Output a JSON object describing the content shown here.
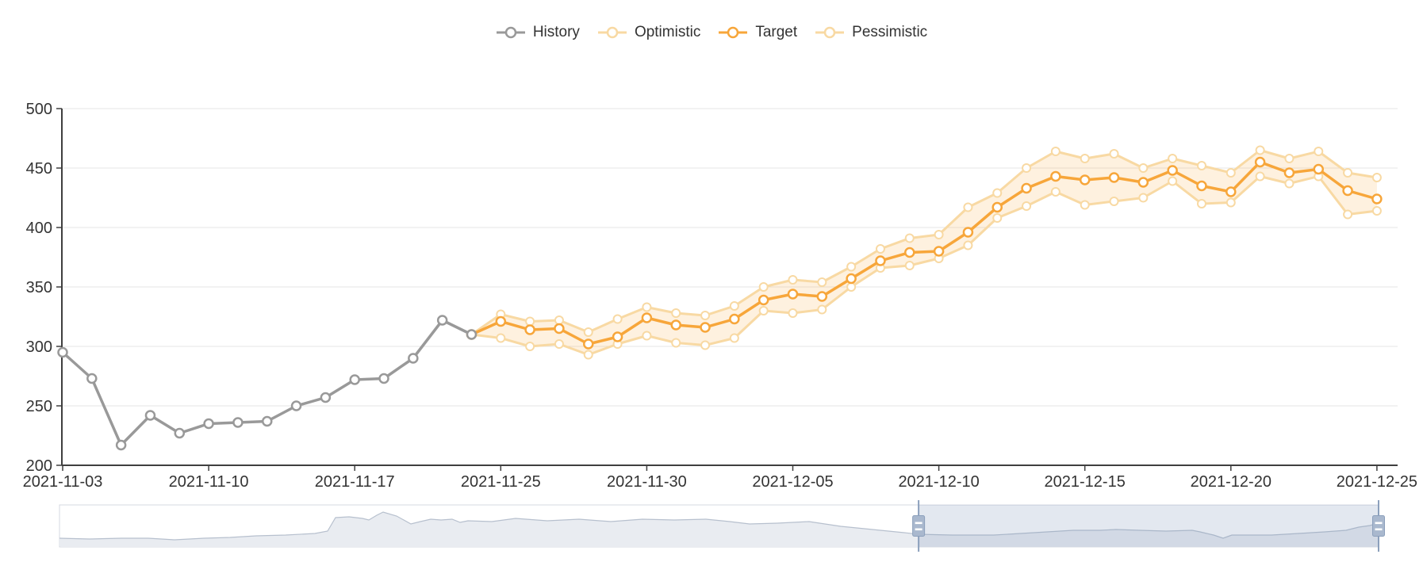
{
  "page": {
    "background": "#ffffff"
  },
  "legend": {
    "items": [
      {
        "label": "History",
        "color": "#999999"
      },
      {
        "label": "Optimistic",
        "color": "#F8D9A3"
      },
      {
        "label": "Target",
        "color": "#F7A63A"
      },
      {
        "label": "Pessimistic",
        "color": "#F8D9A3"
      }
    ]
  },
  "chart_data": {
    "type": "line",
    "title": "",
    "x_axis": {
      "num_points": 46,
      "tick_indices": [
        0,
        5,
        10,
        15,
        20,
        25,
        30,
        35,
        40,
        45
      ],
      "tick_labels": [
        "2021-11-03",
        "2021-11-10",
        "2021-11-17",
        "2021-11-25",
        "2021-11-30",
        "2021-12-05",
        "2021-12-10",
        "2021-12-15",
        "2021-12-20",
        "2021-12-25"
      ]
    },
    "y_axis": {
      "min": 200,
      "max": 500,
      "interval": 50,
      "tick_labels": [
        "200",
        "250",
        "300",
        "350",
        "400",
        "450",
        "500"
      ]
    },
    "grid": true,
    "legend_position": "top-center",
    "series": [
      {
        "name": "History",
        "color": "#999999",
        "line_width": 3.5,
        "start_index": 0,
        "values": [
          295,
          273,
          217,
          242,
          227,
          235,
          236,
          237,
          250,
          257,
          272,
          273,
          290,
          322,
          310
        ]
      },
      {
        "name": "Optimistic",
        "color": "#F8D9A3",
        "line_width": 3,
        "start_index": 14,
        "values": [
          310,
          327,
          321,
          322,
          312,
          323,
          333,
          328,
          326,
          334,
          350,
          356,
          354,
          367,
          382,
          391,
          394,
          417,
          429,
          450,
          464,
          458,
          462,
          450,
          458,
          452,
          446,
          465,
          458,
          464,
          446,
          442
        ]
      },
      {
        "name": "Target",
        "color": "#F7A63A",
        "line_width": 3.5,
        "start_index": 14,
        "values": [
          310,
          321,
          314,
          315,
          302,
          308,
          324,
          318,
          316,
          323,
          339,
          344,
          342,
          357,
          372,
          379,
          380,
          396,
          417,
          433,
          443,
          440,
          442,
          438,
          448,
          435,
          430,
          455,
          446,
          449,
          431,
          424
        ]
      },
      {
        "name": "Pessimistic",
        "color": "#F8D9A3",
        "line_width": 3,
        "start_index": 14,
        "values": [
          310,
          307,
          300,
          302,
          293,
          302,
          309,
          303,
          301,
          307,
          330,
          328,
          331,
          350,
          366,
          368,
          374,
          385,
          408,
          418,
          430,
          419,
          422,
          425,
          439,
          420,
          421,
          443,
          437,
          443,
          411,
          414
        ]
      }
    ],
    "band": {
      "upper": "Optimistic",
      "lower": "Pessimistic",
      "fill": "rgba(247,166,58,0.16)"
    },
    "datazoom": {
      "selection_start": 0.6513,
      "selection_end": 1.0,
      "track_bg": "#ffffff",
      "border_color": "#D4D8E0",
      "shadow_fill": "#E9ECF1",
      "shadow_line": "#B7C0CE",
      "overlay_fill": "rgba(128,150,185,0.22)",
      "handle_fill": "#A9B8CE",
      "handle_border": "#8CA0BC",
      "shadow_points": [
        [
          75,
          679
        ],
        [
          113,
          680
        ],
        [
          153,
          679
        ],
        [
          187,
          679
        ],
        [
          220,
          681
        ],
        [
          257,
          679
        ],
        [
          290,
          678
        ],
        [
          323,
          676
        ],
        [
          360,
          675
        ],
        [
          397,
          673
        ],
        [
          413,
          670
        ],
        [
          423,
          653
        ],
        [
          440,
          652
        ],
        [
          457,
          654
        ],
        [
          465,
          656
        ],
        [
          475,
          650
        ],
        [
          483,
          646
        ],
        [
          500,
          651
        ],
        [
          518,
          661
        ],
        [
          530,
          658
        ],
        [
          543,
          655
        ],
        [
          556,
          656
        ],
        [
          570,
          655
        ],
        [
          580,
          659
        ],
        [
          590,
          657
        ],
        [
          620,
          658
        ],
        [
          650,
          654
        ],
        [
          690,
          657
        ],
        [
          730,
          655
        ],
        [
          770,
          658
        ],
        [
          810,
          655
        ],
        [
          850,
          656
        ],
        [
          890,
          655
        ],
        [
          920,
          658
        ],
        [
          945,
          661
        ],
        [
          980,
          660
        ],
        [
          1020,
          658
        ],
        [
          1060,
          664
        ],
        [
          1100,
          668
        ],
        [
          1140,
          672
        ],
        [
          1158,
          674
        ],
        [
          1200,
          675
        ],
        [
          1253,
          675
        ],
        [
          1287,
          673
        ],
        [
          1320,
          671
        ],
        [
          1353,
          669
        ],
        [
          1387,
          669
        ],
        [
          1407,
          668
        ],
        [
          1437,
          669
        ],
        [
          1470,
          670
        ],
        [
          1503,
          669
        ],
        [
          1513,
          671
        ],
        [
          1530,
          675
        ],
        [
          1542,
          679
        ],
        [
          1553,
          675
        ],
        [
          1570,
          675
        ],
        [
          1603,
          675
        ],
        [
          1637,
          673
        ],
        [
          1670,
          671
        ],
        [
          1697,
          669
        ],
        [
          1713,
          665
        ],
        [
          1727,
          663
        ],
        [
          1738,
          660
        ]
      ]
    },
    "style": {
      "axis_color": "#3f3f3f",
      "grid_color": "#E6E6E6",
      "label_color": "#333333",
      "marker_fill": "#ffffff"
    }
  }
}
